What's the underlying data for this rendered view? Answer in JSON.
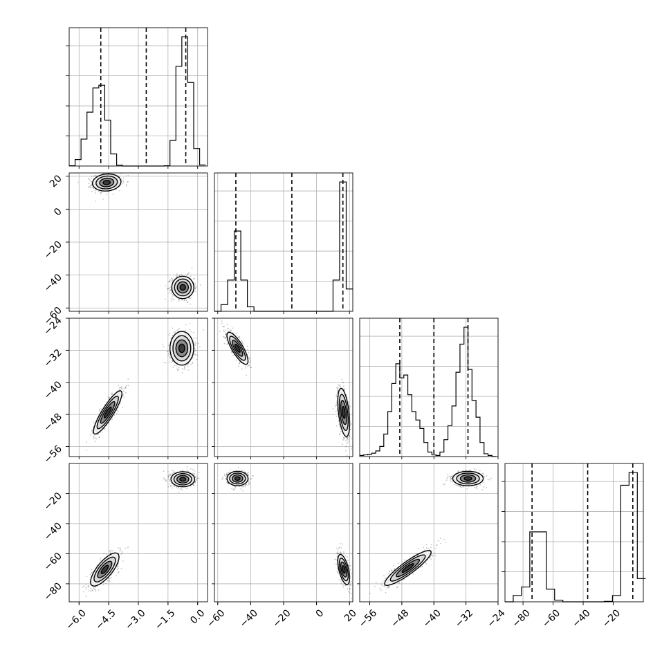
{
  "chart_data": {
    "type": "corner",
    "grid": true,
    "n_params": 4,
    "params": [
      {
        "range": [
          -6.5,
          0.5
        ],
        "ticks": [
          "−6.0",
          "−4.5",
          "−3.0",
          "−1.5",
          "0.0"
        ],
        "tick_values": [
          -6.0,
          -4.5,
          -3.0,
          -1.5,
          0.0
        ]
      },
      {
        "range": [
          -62,
          22
        ],
        "ticks": [
          "−60",
          "−40",
          "−20",
          "0",
          "20"
        ],
        "tick_values": [
          -60,
          -40,
          -20,
          0,
          20
        ]
      },
      {
        "range": [
          -58.5,
          -24
        ],
        "ticks": [
          "−56",
          "−48",
          "−40",
          "−32",
          "−24"
        ],
        "tick_values": [
          -56,
          -48,
          -40,
          -32,
          -24
        ]
      },
      {
        "range": [
          -92,
          0
        ],
        "ticks": [
          "−80",
          "−60",
          "−40",
          "−20"
        ],
        "tick_values": [
          -80,
          -60,
          -40,
          -20
        ]
      }
    ],
    "diagonal": [
      {
        "param": 0,
        "bin_edges": [
          -6.5,
          -6.2,
          -5.9,
          -5.6,
          -5.3,
          -5.0,
          -4.7,
          -4.4,
          -4.1,
          -3.8,
          -3.5,
          -3.2,
          -2.9,
          -2.6,
          -2.3,
          -2.0,
          -1.7,
          -1.4,
          -1.1,
          -0.8,
          -0.5,
          -0.2,
          0.1,
          0.4
        ],
        "counts": [
          1,
          24,
          100,
          200,
          290,
          300,
          170,
          45,
          3,
          0,
          0,
          0,
          0,
          0,
          0,
          0,
          1,
          95,
          370,
          480,
          310,
          65,
          4
        ],
        "quantiles": [
          -4.9,
          -2.6,
          -0.6
        ]
      },
      {
        "param": 1,
        "bin_edges": [
          -62,
          -58,
          -54,
          -50,
          -46,
          -42,
          -38,
          -34,
          -30,
          -26,
          -22,
          -18,
          -14,
          -10,
          -6,
          -2,
          2,
          6,
          10,
          14,
          18,
          22
        ],
        "counts": [
          0,
          15,
          70,
          180,
          70,
          10,
          0,
          0,
          0,
          0,
          0,
          0,
          0,
          0,
          0,
          0,
          0,
          0,
          70,
          290,
          50
        ],
        "quantiles": [
          -49,
          -15,
          16
        ]
      },
      {
        "param": 2,
        "bin_edges": [
          -58.5,
          -57.5,
          -56.5,
          -55.5,
          -54.5,
          -53.5,
          -52.5,
          -51.5,
          -50.5,
          -49.5,
          -48.5,
          -47.5,
          -46.5,
          -45.5,
          -44.5,
          -43.5,
          -42.5,
          -41.5,
          -40.5,
          -39.5,
          -38.5,
          -37.5,
          -36.5,
          -35.5,
          -34.5,
          -33.5,
          -32.5,
          -31.5,
          -30.5,
          -29.5,
          -28.5,
          -27.5,
          -26.5,
          -25.5,
          -24.5
        ],
        "counts": [
          2,
          3,
          4,
          6,
          10,
          18,
          40,
          80,
          130,
          165,
          140,
          145,
          110,
          80,
          65,
          50,
          25,
          8,
          3,
          2,
          8,
          30,
          55,
          90,
          150,
          200,
          230,
          155,
          100,
          70,
          25,
          5,
          2,
          0
        ],
        "quantiles": [
          -48.5,
          -40,
          -31.5
        ]
      },
      {
        "param": 3,
        "bin_edges": [
          -92,
          -86.5,
          -81,
          -75.5,
          -70,
          -64.5,
          -59,
          -53.5,
          -48,
          -42.5,
          -37,
          -31.5,
          -26,
          -20.5,
          -15,
          -9.5,
          -4,
          1.5
        ],
        "counts": [
          0,
          30,
          70,
          330,
          330,
          60,
          8,
          0,
          0,
          0,
          0,
          0,
          2,
          30,
          550,
          610,
          110
        ],
        "quantiles": [
          -74,
          -37,
          -7
        ]
      }
    ],
    "pairs": [
      {
        "x_param": 0,
        "y_param": 1,
        "modes": [
          {
            "cx": -4.6,
            "cy": 16.2,
            "sx": 0.36,
            "sy": 2.6,
            "rho": 0.1,
            "weight": 0.5
          },
          {
            "cx": -0.75,
            "cy": -47.5,
            "sx": 0.28,
            "sy": 3.4,
            "rho": 0.0,
            "weight": 0.5
          }
        ]
      },
      {
        "x_param": 0,
        "y_param": 2,
        "modes": [
          {
            "cx": -4.55,
            "cy": -47.5,
            "sx": 0.36,
            "sy": 2.7,
            "rho": 0.88,
            "weight": 0.5
          },
          {
            "cx": -0.8,
            "cy": -31.5,
            "sx": 0.3,
            "sy": 2.1,
            "rho": 0.0,
            "weight": 0.5
          }
        ]
      },
      {
        "x_param": 1,
        "y_param": 2,
        "modes": [
          {
            "cx": -48,
            "cy": -31.5,
            "sx": 3.2,
            "sy": 2.0,
            "rho": -0.8,
            "weight": 0.5
          },
          {
            "cx": 16.5,
            "cy": -47.5,
            "sx": 1.8,
            "sy": 3.0,
            "rho": -0.45,
            "weight": 0.5
          }
        ]
      },
      {
        "x_param": 0,
        "y_param": 3,
        "modes": [
          {
            "cx": -4.7,
            "cy": -70.5,
            "sx": 0.36,
            "sy": 5.5,
            "rho": 0.75,
            "weight": 0.5
          },
          {
            "cx": -0.75,
            "cy": -10.5,
            "sx": 0.3,
            "sy": 2.5,
            "rho": 0.0,
            "weight": 0.5
          }
        ]
      },
      {
        "x_param": 1,
        "y_param": 3,
        "modes": [
          {
            "cx": -48,
            "cy": -10,
            "sx": 3.2,
            "sy": 2.4,
            "rho": 0.0,
            "weight": 0.5
          },
          {
            "cx": 16.5,
            "cy": -70.5,
            "sx": 1.8,
            "sy": 5.0,
            "rho": -0.55,
            "weight": 0.5
          }
        ]
      },
      {
        "x_param": 2,
        "y_param": 3,
        "modes": [
          {
            "cx": -46.5,
            "cy": -69.5,
            "sx": 2.9,
            "sy": 5.8,
            "rho": 0.9,
            "weight": 0.5
          },
          {
            "cx": -31.5,
            "cy": -10,
            "sx": 1.9,
            "sy": 2.4,
            "rho": 0.0,
            "weight": 0.5
          }
        ]
      }
    ],
    "contour_levels_sigma": [
      0.5,
      1.0,
      1.5,
      2.0
    ]
  }
}
